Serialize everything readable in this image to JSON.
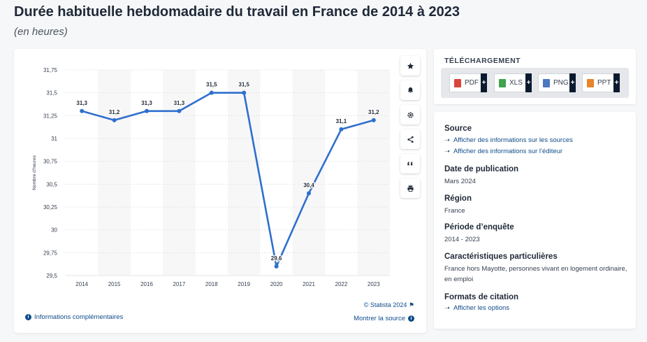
{
  "title": "Durée habituelle hebdomadaire du travail en France de 2014 à 2023",
  "subtitle": "(en heures)",
  "chart_data": {
    "type": "line",
    "categories": [
      "2014",
      "2015",
      "2016",
      "2017",
      "2018",
      "2019",
      "2020",
      "2021",
      "2022",
      "2023"
    ],
    "values": [
      31.3,
      31.2,
      31.3,
      31.3,
      31.5,
      31.5,
      29.6,
      30.4,
      31.1,
      31.2
    ],
    "data_labels": [
      "31,3",
      "31,2",
      "31,3",
      "31,3",
      "31,5",
      "31,5",
      "29,6",
      "30,4",
      "31,1",
      "31,2"
    ],
    "ylabel": "Nombre d'heures",
    "ylim": [
      29.5,
      31.75
    ],
    "yticks": [
      29.5,
      29.75,
      30,
      30.25,
      30.5,
      30.75,
      31,
      31.25,
      31.5,
      31.75
    ],
    "ytick_labels": [
      "29,5",
      "29,75",
      "30",
      "30,25",
      "30,5",
      "30,75",
      "31",
      "31,25",
      "31,5",
      "31,75"
    ],
    "grid": true,
    "line_color": "#2f6fce"
  },
  "chart_footer": {
    "copyright": "© Statista 2024",
    "more_info": "Informations complémentaires",
    "show_source": "Montrer la source"
  },
  "toolbar": {
    "icons": [
      "star-icon",
      "bell-icon",
      "gear-icon",
      "share-icon",
      "quote-icon",
      "print-icon"
    ]
  },
  "download": {
    "title": "TÉLÉCHARGEMENT",
    "buttons": [
      {
        "label": "PDF",
        "color": "#d9453c"
      },
      {
        "label": "XLS",
        "color": "#3fa34d"
      },
      {
        "label": "PNG",
        "color": "#4a78c2"
      },
      {
        "label": "PPT",
        "color": "#e8842a"
      }
    ]
  },
  "meta": {
    "source_h": "Source",
    "source_link1": "Afficher des informations sur les sources",
    "source_link2": "Afficher des informations sur l’éditeur",
    "pub_h": "Date de publication",
    "pub_v": "Mars 2024",
    "region_h": "Région",
    "region_v": "France",
    "period_h": "Période d’enquête",
    "period_v": "2014 - 2023",
    "char_h": "Caractéristiques particulières",
    "char_v": "France hors Mayotte, personnes vivant en logement ordinaire, en emploi",
    "cite_h": "Formats de citation",
    "cite_link": "Afficher les options"
  }
}
